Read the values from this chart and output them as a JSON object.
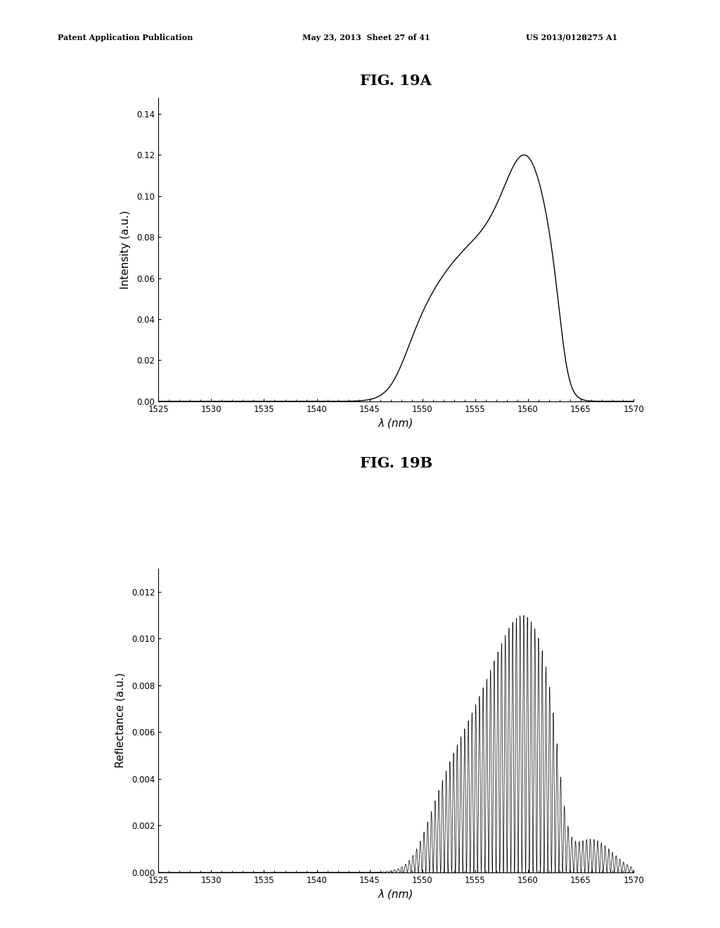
{
  "header_left": "Patent Application Publication",
  "header_mid": "May 23, 2013  Sheet 27 of 41",
  "header_right": "US 2013/0128275 A1",
  "fig_title_A": "FIG. 19A",
  "fig_title_B": "FIG. 19B",
  "xlabel": "λ (nm)",
  "ylabel_A": "Intensity (a.u.)",
  "ylabel_B": "Reflectance (a.u.)",
  "xmin": 1525,
  "xmax": 1570,
  "xticks": [
    1525,
    1530,
    1535,
    1540,
    1545,
    1550,
    1555,
    1560,
    1565,
    1570
  ],
  "yticks_A": [
    0.0,
    0.02,
    0.04,
    0.06,
    0.08,
    0.1,
    0.12,
    0.14
  ],
  "ylim_A": [
    0.0,
    0.148
  ],
  "yticks_B": [
    0.0,
    0.002,
    0.004,
    0.006,
    0.008,
    0.01,
    0.012
  ],
  "ylim_B": [
    0.0,
    0.013
  ],
  "line_color": "#000000",
  "background_color": "#ffffff",
  "title_fontsize": 15,
  "label_fontsize": 11,
  "tick_fontsize": 8.5,
  "header_fontsize": 8
}
